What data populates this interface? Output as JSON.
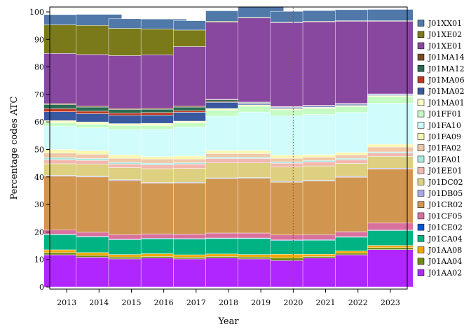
{
  "chart_data": {
    "type": "bar",
    "stacked": true,
    "xlabel": "Year",
    "ylabel": "Percentage codes ATC",
    "ylim": [
      0,
      100
    ],
    "yticks": [
      0,
      10,
      20,
      30,
      40,
      50,
      60,
      70,
      80,
      90,
      100
    ],
    "categories": [
      "2013",
      "2014",
      "2015",
      "2016",
      "2017",
      "2018",
      "2019",
      "2020",
      "2021",
      "2022",
      "2023"
    ],
    "reference_line": {
      "x": "2020",
      "style": "dotted",
      "color": "#a0522d"
    },
    "legend_position": "right",
    "series": [
      {
        "name": "J01AA02",
        "color": "#b026ff",
        "values": [
          11.7,
          10.8,
          10.2,
          10.5,
          10.2,
          10.5,
          10.2,
          9.6,
          10.5,
          11.7,
          13.6
        ]
      },
      {
        "name": "J01AA04",
        "color": "#6e8b12",
        "values": [
          0.8,
          0.7,
          0.7,
          0.6,
          0.6,
          0.6,
          0.7,
          1.0,
          0.6,
          0.6,
          0.7
        ]
      },
      {
        "name": "J01AA08",
        "color": "#f0a800",
        "values": [
          1.0,
          1.0,
          0.9,
          1.0,
          0.9,
          0.9,
          0.9,
          1.3,
          0.8,
          0.8,
          0.8
        ]
      },
      {
        "name": "J01CA04",
        "color": "#00b383",
        "values": [
          5.5,
          5.7,
          5.4,
          5.4,
          5.7,
          5.6,
          5.8,
          5.0,
          5.1,
          5.0,
          5.4
        ]
      },
      {
        "name": "J01CE02",
        "color": "#0055cc",
        "values": [
          0.2,
          0.2,
          0.2,
          0.2,
          0.2,
          0.2,
          0.2,
          0.2,
          0.2,
          0.2,
          0.2
        ]
      },
      {
        "name": "J01CF05",
        "color": "#d8719e",
        "values": [
          1.6,
          1.5,
          1.6,
          1.6,
          1.6,
          1.8,
          1.8,
          1.8,
          1.8,
          1.8,
          2.6
        ]
      },
      {
        "name": "J01CR02",
        "color": "#d09650",
        "values": [
          19.5,
          20.1,
          19.7,
          18.4,
          18.6,
          19.8,
          19.9,
          19.2,
          19.5,
          19.8,
          19.6
        ]
      },
      {
        "name": "J01DB05",
        "color": "#a8a8e8",
        "values": [
          0.3,
          0.3,
          0.3,
          0.3,
          0.3,
          0.3,
          0.3,
          0.3,
          0.3,
          0.3,
          0.3
        ]
      },
      {
        "name": "J01DC02",
        "color": "#ddd080",
        "values": [
          4.2,
          4.3,
          4.4,
          5.0,
          5.0,
          5.4,
          5.3,
          5.2,
          5.2,
          4.7,
          4.3
        ]
      },
      {
        "name": "J01EE01",
        "color": "#f2b8b0",
        "values": [
          1.5,
          1.4,
          1.3,
          1.4,
          1.6,
          1.6,
          1.6,
          1.4,
          1.5,
          1.4,
          1.2
        ]
      },
      {
        "name": "J01FA01",
        "color": "#a8e8e0",
        "values": [
          0.7,
          0.7,
          0.6,
          0.6,
          0.5,
          0.5,
          0.5,
          0.5,
          0.5,
          0.5,
          0.4
        ]
      },
      {
        "name": "J01FA02",
        "color": "#f0c8a8",
        "values": [
          1.7,
          1.6,
          1.5,
          1.5,
          1.3,
          1.3,
          1.3,
          1.3,
          1.2,
          1.2,
          1.8
        ]
      },
      {
        "name": "J01FA09",
        "color": "#f8f8b0",
        "values": [
          1.3,
          1.2,
          1.2,
          0.9,
          1.1,
          1.1,
          1.1,
          1.1,
          0.9,
          0.9,
          1.0
        ]
      },
      {
        "name": "J01FA10",
        "color": "#d0fcfc",
        "values": [
          8.5,
          8.4,
          9.2,
          9.9,
          10.6,
          12.5,
          14.0,
          14.3,
          14.6,
          14.5,
          14.9
        ]
      },
      {
        "name": "J01FF01",
        "color": "#c4fcc4",
        "values": [
          1.2,
          1.3,
          1.4,
          1.4,
          1.4,
          2.2,
          2.1,
          2.2,
          2.2,
          2.2,
          2.4
        ]
      },
      {
        "name": "J01MA01",
        "color": "#fcfcc4",
        "values": [
          0.8,
          0.8,
          0.8,
          0.8,
          0.7,
          0.6,
          0.5,
          0.5,
          0.4,
          0.4,
          0.4
        ]
      },
      {
        "name": "J01MA02",
        "color": "#3858a0",
        "values": [
          3.2,
          3.0,
          3.0,
          3.0,
          3.2,
          2.2,
          0.5,
          0.4,
          0.4,
          0.4,
          0.3
        ]
      },
      {
        "name": "J01MA06",
        "color": "#c03820",
        "values": [
          1.1,
          0.9,
          0.8,
          0.9,
          0.6,
          0.3,
          0.2,
          0.1,
          0.1,
          0.1,
          0.1
        ]
      },
      {
        "name": "J01MA12",
        "color": "#2a6a52",
        "values": [
          1.5,
          1.5,
          1.3,
          1.2,
          1.3,
          0.6,
          0.2,
          0.1,
          0.1,
          0.1,
          0.1
        ]
      },
      {
        "name": "J01MA14",
        "color": "#7a4a22",
        "values": [
          0.4,
          0.4,
          0.4,
          0.4,
          0.4,
          0.2,
          0.1,
          0.1,
          0.1,
          0.1,
          0.1
        ]
      },
      {
        "name": "J01XE01",
        "color": "#8848a0",
        "values": [
          18.2,
          18.7,
          19.2,
          19.4,
          21.6,
          28.1,
          30.6,
          30.5,
          30.4,
          29.9,
          26.4
        ]
      },
      {
        "name": "J01XE02",
        "color": "#7a7a1a",
        "values": [
          10.4,
          10.6,
          9.9,
          9.4,
          6.0,
          0.3,
          0.2,
          0.2,
          0.2,
          0.2,
          0.2
        ]
      },
      {
        "name": "J01XX01",
        "color": "#5078a8",
        "values": [
          3.7,
          4.0,
          3.5,
          3.6,
          3.4,
          3.8,
          4.0,
          3.9,
          3.9,
          4.0,
          4.1
        ]
      }
    ]
  }
}
